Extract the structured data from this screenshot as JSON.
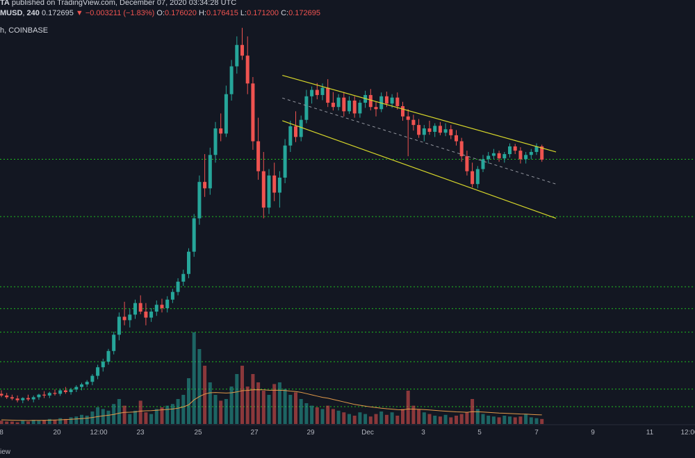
{
  "header": {
    "line1_symbol": "TA",
    "line1_text": "published on TradingView.com, December 07, 2020 03:34:28 UTC",
    "symbol": "MUSD",
    "interval": "240",
    "price": "0.172695",
    "change": "▼ −0.003211 (−1.83%)",
    "o_label": "O:",
    "o": "0.176020",
    "h_label": "H:",
    "h": "0.176415",
    "l_label": "L:",
    "l": "0.171200",
    "c_label": "C:",
    "c": "0.172695",
    "line3": "h, COINBASE"
  },
  "footer_text": "iew",
  "colors": {
    "background": "#131722",
    "up": "#26a69a",
    "down": "#ef5350",
    "channel": "#d8d82a",
    "support": "#1fc01f",
    "ma": "#e39a4a"
  },
  "chart_data": {
    "type": "candlestick",
    "title": "",
    "xlabel": "",
    "ylabel": "",
    "x_axis_labels": [
      "8",
      "20",
      "12:00",
      "23",
      "25",
      "27",
      "29",
      "Dec",
      "3",
      "5",
      "7",
      "9",
      "11",
      "12:00"
    ],
    "ylim": [
      0.103,
      0.21
    ],
    "candle_interval": "240",
    "support_levels": [
      0.1728,
      0.1594,
      0.143,
      0.1379,
      0.1324,
      0.1255,
      0.1191,
      0.115
    ],
    "channel": {
      "upper": {
        "from": [
          "Nov 28",
          0.1924
        ],
        "to": [
          "Dec 7 ~16:00",
          0.1745
        ]
      },
      "lower": {
        "from": [
          "Nov 28",
          0.1818
        ],
        "to": [
          "Dec 7 ~16:00",
          0.159
        ]
      },
      "midline": {
        "from": [
          "Nov 28",
          0.1871
        ],
        "to": [
          "Dec 7 ~16:00",
          0.167
        ]
      }
    },
    "candles_note": "approximate OHLC series (4h candles)",
    "candles": [
      [
        0.118,
        0.1188,
        0.1172,
        0.1176
      ],
      [
        0.1176,
        0.1182,
        0.1168,
        0.1172
      ],
      [
        0.1172,
        0.1178,
        0.1165,
        0.1169
      ],
      [
        0.1169,
        0.1176,
        0.116,
        0.1165
      ],
      [
        0.1165,
        0.1172,
        0.1158,
        0.117
      ],
      [
        0.117,
        0.1178,
        0.1163,
        0.1167
      ],
      [
        0.1167,
        0.1176,
        0.116,
        0.1172
      ],
      [
        0.1172,
        0.118,
        0.1166,
        0.1178
      ],
      [
        0.1178,
        0.1186,
        0.117,
        0.1176
      ],
      [
        0.1176,
        0.1185,
        0.117,
        0.1182
      ],
      [
        0.1182,
        0.119,
        0.1176,
        0.118
      ],
      [
        0.118,
        0.1192,
        0.1175,
        0.1188
      ],
      [
        0.1188,
        0.1196,
        0.118,
        0.1184
      ],
      [
        0.1184,
        0.1194,
        0.1178,
        0.119
      ],
      [
        0.119,
        0.12,
        0.1184,
        0.1196
      ],
      [
        0.1196,
        0.1206,
        0.1188,
        0.1202
      ],
      [
        0.1202,
        0.1212,
        0.1196,
        0.1208
      ],
      [
        0.1208,
        0.1226,
        0.12,
        0.1222
      ],
      [
        0.1222,
        0.1248,
        0.1214,
        0.1242
      ],
      [
        0.1242,
        0.1262,
        0.1232,
        0.1255
      ],
      [
        0.1255,
        0.1285,
        0.1248,
        0.128
      ],
      [
        0.128,
        0.1325,
        0.1272,
        0.1318
      ],
      [
        0.1318,
        0.137,
        0.1305,
        0.136
      ],
      [
        0.136,
        0.1395,
        0.134,
        0.1352
      ],
      [
        0.1352,
        0.1378,
        0.1335,
        0.1365
      ],
      [
        0.1365,
        0.14,
        0.1355,
        0.1392
      ],
      [
        0.1392,
        0.141,
        0.1366,
        0.1372
      ],
      [
        0.1372,
        0.1392,
        0.134,
        0.1358
      ],
      [
        0.1358,
        0.138,
        0.1348,
        0.1372
      ],
      [
        0.1372,
        0.1398,
        0.1362,
        0.1388
      ],
      [
        0.1388,
        0.1402,
        0.137,
        0.138
      ],
      [
        0.138,
        0.1408,
        0.137,
        0.14
      ],
      [
        0.14,
        0.1425,
        0.1392,
        0.1418
      ],
      [
        0.1418,
        0.145,
        0.141,
        0.1442
      ],
      [
        0.1442,
        0.147,
        0.1432,
        0.146
      ],
      [
        0.146,
        0.152,
        0.145,
        0.1512
      ],
      [
        0.1512,
        0.16,
        0.15,
        0.159
      ],
      [
        0.159,
        0.169,
        0.1575,
        0.1675
      ],
      [
        0.1675,
        0.174,
        0.164,
        0.166
      ],
      [
        0.166,
        0.1755,
        0.1645,
        0.1738
      ],
      [
        0.1738,
        0.1815,
        0.172,
        0.18
      ],
      [
        0.18,
        0.1835,
        0.177,
        0.1788
      ],
      [
        0.1788,
        0.19,
        0.178,
        0.188
      ],
      [
        0.188,
        0.196,
        0.1865,
        0.1945
      ],
      [
        0.1945,
        0.2015,
        0.1928,
        0.1995
      ],
      [
        0.1995,
        0.2035,
        0.196,
        0.197
      ],
      [
        0.197,
        0.2015,
        0.188,
        0.1905
      ],
      [
        0.1905,
        0.192,
        0.175,
        0.177
      ],
      [
        0.177,
        0.1825,
        0.168,
        0.17
      ],
      [
        0.17,
        0.1745,
        0.159,
        0.1615
      ],
      [
        0.1615,
        0.1705,
        0.16,
        0.169
      ],
      [
        0.169,
        0.172,
        0.163,
        0.165
      ],
      [
        0.165,
        0.17,
        0.1615,
        0.1685
      ],
      [
        0.1685,
        0.1775,
        0.1672,
        0.176
      ],
      [
        0.176,
        0.1818,
        0.1745,
        0.1805
      ],
      [
        0.1805,
        0.184,
        0.1768,
        0.178
      ],
      [
        0.178,
        0.183,
        0.177,
        0.182
      ],
      [
        0.182,
        0.189,
        0.1812,
        0.1875
      ],
      [
        0.1875,
        0.1898,
        0.1858,
        0.189
      ],
      [
        0.189,
        0.1906,
        0.1868,
        0.1878
      ],
      [
        0.1878,
        0.1905,
        0.1866,
        0.1895
      ],
      [
        0.1895,
        0.1915,
        0.185,
        0.186
      ],
      [
        0.186,
        0.1885,
        0.1842,
        0.185
      ],
      [
        0.185,
        0.188,
        0.1842,
        0.1872
      ],
      [
        0.1872,
        0.1885,
        0.1828,
        0.184
      ],
      [
        0.184,
        0.1875,
        0.1834,
        0.1865
      ],
      [
        0.1865,
        0.1875,
        0.1825,
        0.1835
      ],
      [
        0.1835,
        0.1866,
        0.1825,
        0.186
      ],
      [
        0.186,
        0.1888,
        0.1848,
        0.1878
      ],
      [
        0.1878,
        0.1892,
        0.1842,
        0.185
      ],
      [
        0.185,
        0.1862,
        0.1828,
        0.1845
      ],
      [
        0.1845,
        0.1884,
        0.1838,
        0.1875
      ],
      [
        0.1875,
        0.1886,
        0.185,
        0.1858
      ],
      [
        0.1858,
        0.188,
        0.1848,
        0.1872
      ],
      [
        0.1872,
        0.1884,
        0.1844,
        0.1852
      ],
      [
        0.1852,
        0.1862,
        0.1818,
        0.1828
      ],
      [
        0.1828,
        0.1845,
        0.1735,
        0.182
      ],
      [
        0.182,
        0.1832,
        0.1795,
        0.1808
      ],
      [
        0.1808,
        0.1822,
        0.1778,
        0.1785
      ],
      [
        0.1785,
        0.1808,
        0.177,
        0.18
      ],
      [
        0.18,
        0.1818,
        0.1785,
        0.1792
      ],
      [
        0.1792,
        0.1812,
        0.178,
        0.1806
      ],
      [
        0.1806,
        0.1815,
        0.1784,
        0.179
      ],
      [
        0.179,
        0.1812,
        0.1782,
        0.1798
      ],
      [
        0.1798,
        0.1808,
        0.1775,
        0.1784
      ],
      [
        0.1784,
        0.1796,
        0.176,
        0.177
      ],
      [
        0.177,
        0.1778,
        0.1722,
        0.1735
      ],
      [
        0.1735,
        0.1748,
        0.169,
        0.17
      ],
      [
        0.17,
        0.172,
        0.1662,
        0.167
      ],
      [
        0.167,
        0.1712,
        0.166,
        0.1705
      ],
      [
        0.1705,
        0.1738,
        0.1698,
        0.1728
      ],
      [
        0.1728,
        0.1745,
        0.1718,
        0.1736
      ],
      [
        0.1736,
        0.1752,
        0.1728,
        0.1742
      ],
      [
        0.1742,
        0.1748,
        0.1722,
        0.173
      ],
      [
        0.173,
        0.1745,
        0.172,
        0.174
      ],
      [
        0.174,
        0.1765,
        0.1732,
        0.1758
      ],
      [
        0.1758,
        0.1764,
        0.174,
        0.1748
      ],
      [
        0.1748,
        0.1756,
        0.1718,
        0.1728
      ],
      [
        0.1728,
        0.1745,
        0.1718,
        0.1738
      ],
      [
        0.1738,
        0.1752,
        0.1728,
        0.1745
      ],
      [
        0.1745,
        0.1765,
        0.1738,
        0.1758
      ],
      [
        0.1758,
        0.1762,
        0.1722,
        0.1727
      ]
    ],
    "volumes": [
      4,
      3,
      3,
      2,
      4,
      3,
      5,
      4,
      5,
      6,
      5,
      7,
      6,
      8,
      9,
      11,
      10,
      15,
      20,
      18,
      16,
      24,
      30,
      22,
      12,
      16,
      28,
      14,
      12,
      18,
      20,
      22,
      24,
      30,
      35,
      55,
      110,
      90,
      70,
      50,
      35,
      28,
      30,
      45,
      60,
      70,
      45,
      60,
      50,
      40,
      35,
      48,
      50,
      42,
      35,
      38,
      30,
      25,
      22,
      20,
      18,
      22,
      18,
      16,
      14,
      12,
      10,
      14,
      12,
      9,
      12,
      15,
      11,
      14,
      10,
      18,
      40,
      22,
      18,
      14,
      12,
      10,
      9,
      11,
      8,
      10,
      12,
      14,
      30,
      18,
      12,
      10,
      9,
      8,
      10,
      9,
      8,
      9,
      12,
      8,
      7,
      6
    ],
    "ma_volume": [
      5,
      4.8,
      4.6,
      4.4,
      4.3,
      4.2,
      4.3,
      4.3,
      4.4,
      4.6,
      4.8,
      5,
      5.3,
      5.6,
      6,
      6.5,
      7,
      7.8,
      8.8,
      9.8,
      10.5,
      11.5,
      13,
      14,
      14.2,
      14.5,
      15.5,
      15.8,
      16,
      16.5,
      17,
      17.5,
      18,
      19,
      20.5,
      23,
      29,
      33,
      36,
      37.5,
      37.8,
      37.5,
      37.2,
      37.5,
      38.5,
      40,
      40.3,
      41,
      41.2,
      41,
      40.5,
      40.5,
      40.5,
      40.2,
      39.5,
      39,
      38,
      36.5,
      35,
      33.5,
      32,
      31,
      29.5,
      28,
      26.5,
      25,
      23.5,
      22.5,
      21.5,
      20.5,
      19.8,
      19,
      18.3,
      17.8,
      17.2,
      17,
      18,
      17.8,
      17.6,
      17.3,
      16.8,
      16.3,
      15.8,
      15.4,
      15,
      14.6,
      14.3,
      14.1,
      14.8,
      14.7,
      14.4,
      14,
      13.6,
      13.2,
      12.9,
      12.6,
      12.3,
      12,
      11.8,
      11.5,
      11.2,
      10.9
    ]
  }
}
